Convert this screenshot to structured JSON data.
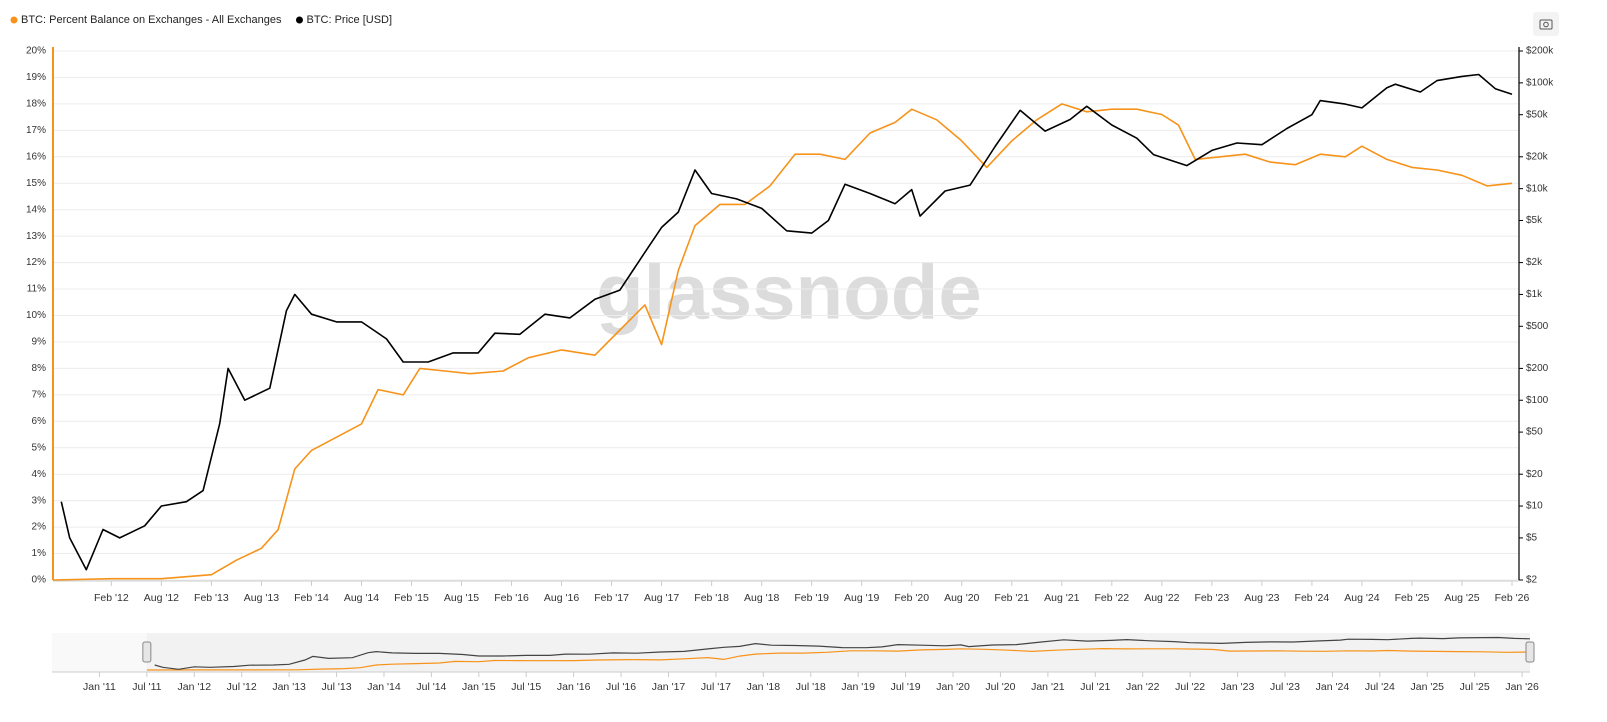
{
  "chart_data": {
    "type": "line",
    "watermark": "glassnode",
    "log_y2": true,
    "grid": true,
    "legend": "top-left",
    "series": [
      {
        "name": "BTC: Percent Balance on Exchanges - All Exchanges",
        "color": "#f7931a",
        "axis": "y",
        "x": [
          "2011-07",
          "2012-02",
          "2012-08",
          "2013-02",
          "2013-05",
          "2013-08",
          "2013-10",
          "2013-12",
          "2014-02",
          "2014-05",
          "2014-08",
          "2014-10",
          "2015-01",
          "2015-03",
          "2015-06",
          "2015-09",
          "2016-01",
          "2016-04",
          "2016-08",
          "2016-12",
          "2017-03",
          "2017-06",
          "2017-08",
          "2017-10",
          "2017-12",
          "2018-03",
          "2018-06",
          "2018-09",
          "2018-12",
          "2019-03",
          "2019-06",
          "2019-09",
          "2019-12",
          "2020-02",
          "2020-05",
          "2020-08",
          "2020-11",
          "2021-02",
          "2021-05",
          "2021-08",
          "2021-11",
          "2022-02",
          "2022-05",
          "2022-08",
          "2022-10",
          "2022-12",
          "2023-03",
          "2023-06",
          "2023-09",
          "2023-12",
          "2024-03",
          "2024-06",
          "2024-08",
          "2024-11",
          "2025-02",
          "2025-05",
          "2025-08",
          "2025-11",
          "2026-02"
        ],
        "values": [
          0,
          0.05,
          0.05,
          0.2,
          0.75,
          1.2,
          1.9,
          4.2,
          4.9,
          5.4,
          5.9,
          7.2,
          7.0,
          8.0,
          7.9,
          7.8,
          7.9,
          8.4,
          8.7,
          8.5,
          9.45,
          10.4,
          8.9,
          11.7,
          13.4,
          14.2,
          14.2,
          14.9,
          16.1,
          16.1,
          15.9,
          16.9,
          17.3,
          17.8,
          17.4,
          16.6,
          15.6,
          16.6,
          17.4,
          18.0,
          17.7,
          17.8,
          17.8,
          17.6,
          17.2,
          15.9,
          16.0,
          16.1,
          15.8,
          15.7,
          16.1,
          16.0,
          16.4,
          15.9,
          15.6,
          15.5,
          15.3,
          14.9,
          15.0
        ]
      },
      {
        "name": "BTC: Price [USD]",
        "color": "#000000",
        "axis": "y2",
        "x": [
          "2011-08",
          "2011-09",
          "2011-11",
          "2012-01",
          "2012-03",
          "2012-06",
          "2012-08",
          "2012-11",
          "2013-01",
          "2013-03",
          "2013-04",
          "2013-06",
          "2013-09",
          "2013-11",
          "2013-12",
          "2014-02",
          "2014-05",
          "2014-08",
          "2014-11",
          "2015-01",
          "2015-04",
          "2015-07",
          "2015-10",
          "2015-12",
          "2016-03",
          "2016-06",
          "2016-09",
          "2016-12",
          "2017-03",
          "2017-06",
          "2017-08",
          "2017-10",
          "2017-12",
          "2018-02",
          "2018-05",
          "2018-08",
          "2018-11",
          "2019-02",
          "2019-04",
          "2019-06",
          "2019-09",
          "2019-12",
          "2020-02",
          "2020-03",
          "2020-06",
          "2020-09",
          "2020-12",
          "2021-03",
          "2021-06",
          "2021-09",
          "2021-11",
          "2022-02",
          "2022-05",
          "2022-07",
          "2022-11",
          "2023-02",
          "2023-05",
          "2023-08",
          "2023-11",
          "2024-02",
          "2024-03",
          "2024-06",
          "2024-08",
          "2024-11",
          "2024-12",
          "2025-03",
          "2025-05",
          "2025-08",
          "2025-10",
          "2025-12",
          "2026-02"
        ],
        "values": [
          11,
          5,
          2.5,
          6,
          5,
          6.5,
          10,
          11,
          14,
          60,
          200,
          100,
          130,
          700,
          1000,
          650,
          550,
          550,
          380,
          230,
          230,
          280,
          280,
          430,
          420,
          650,
          600,
          900,
          1100,
          2500,
          4300,
          6000,
          15000,
          9000,
          8000,
          6500,
          4000,
          3800,
          5000,
          11000,
          9000,
          7200,
          9800,
          5500,
          9500,
          10800,
          25000,
          55000,
          35000,
          45000,
          60000,
          40000,
          30000,
          21000,
          16500,
          23000,
          27000,
          26000,
          37000,
          50000,
          68000,
          63000,
          58000,
          90000,
          97000,
          82000,
          105000,
          115000,
          120000,
          88000,
          78000
        ]
      }
    ],
    "xlim": [
      "2011-07",
      "2026-02"
    ],
    "xticks": [
      {
        "value": "2012-02",
        "label": "Feb '12"
      },
      {
        "value": "2012-08",
        "label": "Aug '12"
      },
      {
        "value": "2013-02",
        "label": "Feb '13"
      },
      {
        "value": "2013-08",
        "label": "Aug '13"
      },
      {
        "value": "2014-02",
        "label": "Feb '14"
      },
      {
        "value": "2014-08",
        "label": "Aug '14"
      },
      {
        "value": "2015-02",
        "label": "Feb '15"
      },
      {
        "value": "2015-08",
        "label": "Aug '15"
      },
      {
        "value": "2016-02",
        "label": "Feb '16"
      },
      {
        "value": "2016-08",
        "label": "Aug '16"
      },
      {
        "value": "2017-02",
        "label": "Feb '17"
      },
      {
        "value": "2017-08",
        "label": "Aug '17"
      },
      {
        "value": "2018-02",
        "label": "Feb '18"
      },
      {
        "value": "2018-08",
        "label": "Aug '18"
      },
      {
        "value": "2019-02",
        "label": "Feb '19"
      },
      {
        "value": "2019-08",
        "label": "Aug '19"
      },
      {
        "value": "2020-02",
        "label": "Feb '20"
      },
      {
        "value": "2020-08",
        "label": "Aug '20"
      },
      {
        "value": "2021-02",
        "label": "Feb '21"
      },
      {
        "value": "2021-08",
        "label": "Aug '21"
      },
      {
        "value": "2022-02",
        "label": "Feb '22"
      },
      {
        "value": "2022-08",
        "label": "Aug '22"
      },
      {
        "value": "2023-02",
        "label": "Feb '23"
      },
      {
        "value": "2023-08",
        "label": "Aug '23"
      },
      {
        "value": "2024-02",
        "label": "Feb '24"
      },
      {
        "value": "2024-08",
        "label": "Aug '24"
      },
      {
        "value": "2025-02",
        "label": "Feb '25"
      },
      {
        "value": "2025-08",
        "label": "Aug '25"
      },
      {
        "value": "2026-02",
        "label": "Feb '26"
      }
    ],
    "ylim": [
      0,
      20
    ],
    "yticks": [
      {
        "value": 0,
        "label": "0%"
      },
      {
        "value": 1,
        "label": "1%"
      },
      {
        "value": 2,
        "label": "2%"
      },
      {
        "value": 3,
        "label": "3%"
      },
      {
        "value": 4,
        "label": "4%"
      },
      {
        "value": 5,
        "label": "5%"
      },
      {
        "value": 6,
        "label": "6%"
      },
      {
        "value": 7,
        "label": "7%"
      },
      {
        "value": 8,
        "label": "8%"
      },
      {
        "value": 9,
        "label": "9%"
      },
      {
        "value": 10,
        "label": "10%"
      },
      {
        "value": 11,
        "label": "11%"
      },
      {
        "value": 12,
        "label": "12%"
      },
      {
        "value": 13,
        "label": "13%"
      },
      {
        "value": 14,
        "label": "14%"
      },
      {
        "value": 15,
        "label": "15%"
      },
      {
        "value": 16,
        "label": "16%"
      },
      {
        "value": 17,
        "label": "17%"
      },
      {
        "value": 18,
        "label": "18%"
      },
      {
        "value": 19,
        "label": "19%"
      },
      {
        "value": 20,
        "label": "20%"
      }
    ],
    "y2lim": [
      2,
      200000
    ],
    "y2ticks": [
      {
        "value": 2,
        "label": "$2"
      },
      {
        "value": 5,
        "label": "$5"
      },
      {
        "value": 10,
        "label": "$10"
      },
      {
        "value": 20,
        "label": "$20"
      },
      {
        "value": 50,
        "label": "$50"
      },
      {
        "value": 100,
        "label": "$100"
      },
      {
        "value": 200,
        "label": "$200"
      },
      {
        "value": 500,
        "label": "$500"
      },
      {
        "value": 1000,
        "label": "$1k"
      },
      {
        "value": 2000,
        "label": "$2k"
      },
      {
        "value": 5000,
        "label": "$5k"
      },
      {
        "value": 10000,
        "label": "$10k"
      },
      {
        "value": 20000,
        "label": "$20k"
      },
      {
        "value": 50000,
        "label": "$50k"
      },
      {
        "value": 100000,
        "label": "$100k"
      },
      {
        "value": 200000,
        "label": "$200k"
      }
    ],
    "navigator": {
      "xlim": [
        "2010-07",
        "2026-02"
      ],
      "xticks": [
        {
          "value": "2011-01",
          "label": "Jan '11"
        },
        {
          "value": "2011-07",
          "label": "Jul '11"
        },
        {
          "value": "2012-01",
          "label": "Jan '12"
        },
        {
          "value": "2012-07",
          "label": "Jul '12"
        },
        {
          "value": "2013-01",
          "label": "Jan '13"
        },
        {
          "value": "2013-07",
          "label": "Jul '13"
        },
        {
          "value": "2014-01",
          "label": "Jan '14"
        },
        {
          "value": "2014-07",
          "label": "Jul '14"
        },
        {
          "value": "2015-01",
          "label": "Jan '15"
        },
        {
          "value": "2015-07",
          "label": "Jul '15"
        },
        {
          "value": "2016-01",
          "label": "Jan '16"
        },
        {
          "value": "2016-07",
          "label": "Jul '16"
        },
        {
          "value": "2017-01",
          "label": "Jan '17"
        },
        {
          "value": "2017-07",
          "label": "Jul '17"
        },
        {
          "value": "2018-01",
          "label": "Jan '18"
        },
        {
          "value": "2018-07",
          "label": "Jul '18"
        },
        {
          "value": "2019-01",
          "label": "Jan '19"
        },
        {
          "value": "2019-07",
          "label": "Jul '19"
        },
        {
          "value": "2020-01",
          "label": "Jan '20"
        },
        {
          "value": "2020-07",
          "label": "Jul '20"
        },
        {
          "value": "2021-01",
          "label": "Jan '21"
        },
        {
          "value": "2021-07",
          "label": "Jul '21"
        },
        {
          "value": "2022-01",
          "label": "Jan '22"
        },
        {
          "value": "2022-07",
          "label": "Jul '22"
        },
        {
          "value": "2023-01",
          "label": "Jan '23"
        },
        {
          "value": "2023-07",
          "label": "Jul '23"
        },
        {
          "value": "2024-01",
          "label": "Jan '24"
        },
        {
          "value": "2024-07",
          "label": "Jul '24"
        },
        {
          "value": "2025-01",
          "label": "Jan '25"
        },
        {
          "value": "2025-07",
          "label": "Jul '25"
        },
        {
          "value": "2026-01",
          "label": "Jan '26"
        }
      ]
    }
  }
}
